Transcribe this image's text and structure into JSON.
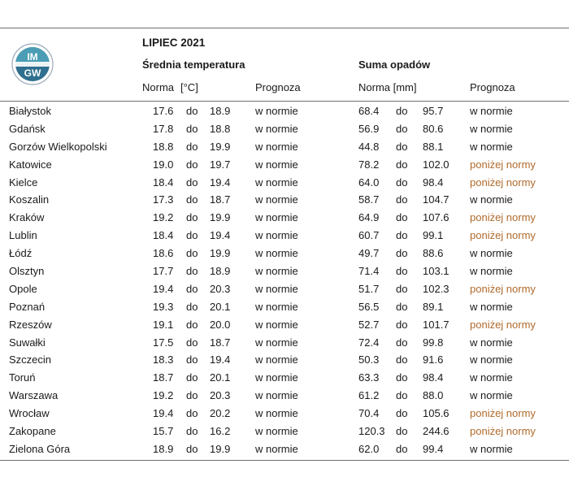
{
  "header": {
    "title": "LIPIEC 2021",
    "temp_section": "Średnia temperatura",
    "precip_section": "Suma opadów",
    "temp_norm_label": "Norma",
    "temp_unit": "[°C]",
    "temp_forecast_label": "Prognoza",
    "precip_norm_label": "Norma [mm]",
    "precip_forecast_label": "Prognoza"
  },
  "logo": {
    "text_top": "IM",
    "text_bottom": "GW"
  },
  "colors": {
    "normal": "#1a1a1a",
    "below_norm": "#b06a2b"
  },
  "rows": [
    {
      "city": "Białystok",
      "t_min": "17.6",
      "t_sep": "do",
      "t_max": "18.9",
      "t_forecast": "w normie",
      "p_min": "68.4",
      "p_sep": "do",
      "p_max": "95.7",
      "p_forecast": "w normie"
    },
    {
      "city": "Gdańsk",
      "t_min": "17.8",
      "t_sep": "do",
      "t_max": "18.8",
      "t_forecast": "w normie",
      "p_min": "56.9",
      "p_sep": "do",
      "p_max": "80.6",
      "p_forecast": "w normie"
    },
    {
      "city": "Gorzów Wielkopolski",
      "t_min": "18.8",
      "t_sep": "do",
      "t_max": "19.9",
      "t_forecast": "w normie",
      "p_min": "44.8",
      "p_sep": "do",
      "p_max": "88.1",
      "p_forecast": "w normie"
    },
    {
      "city": "Katowice",
      "t_min": "19.0",
      "t_sep": "do",
      "t_max": "19.7",
      "t_forecast": "w normie",
      "p_min": "78.2",
      "p_sep": "do",
      "p_max": "102.0",
      "p_forecast": "poniżej normy"
    },
    {
      "city": "Kielce",
      "t_min": "18.4",
      "t_sep": "do",
      "t_max": "19.4",
      "t_forecast": "w normie",
      "p_min": "64.0",
      "p_sep": "do",
      "p_max": "98.4",
      "p_forecast": "poniżej normy"
    },
    {
      "city": "Koszalin",
      "t_min": "17.3",
      "t_sep": "do",
      "t_max": "18.7",
      "t_forecast": "w normie",
      "p_min": "58.7",
      "p_sep": "do",
      "p_max": "104.7",
      "p_forecast": "w normie"
    },
    {
      "city": "Kraków",
      "t_min": "19.2",
      "t_sep": "do",
      "t_max": "19.9",
      "t_forecast": "w normie",
      "p_min": "64.9",
      "p_sep": "do",
      "p_max": "107.6",
      "p_forecast": "poniżej normy"
    },
    {
      "city": "Lublin",
      "t_min": "18.4",
      "t_sep": "do",
      "t_max": "19.4",
      "t_forecast": "w normie",
      "p_min": "60.7",
      "p_sep": "do",
      "p_max": "99.1",
      "p_forecast": "poniżej normy"
    },
    {
      "city": "Łódź",
      "t_min": "18.6",
      "t_sep": "do",
      "t_max": "19.9",
      "t_forecast": "w normie",
      "p_min": "49.7",
      "p_sep": "do",
      "p_max": "88.6",
      "p_forecast": "w normie"
    },
    {
      "city": "Olsztyn",
      "t_min": "17.7",
      "t_sep": "do",
      "t_max": "18.9",
      "t_forecast": "w normie",
      "p_min": "71.4",
      "p_sep": "do",
      "p_max": "103.1",
      "p_forecast": "w normie"
    },
    {
      "city": "Opole",
      "t_min": "19.4",
      "t_sep": "do",
      "t_max": "20.3",
      "t_forecast": "w normie",
      "p_min": "51.7",
      "p_sep": "do",
      "p_max": "102.3",
      "p_forecast": "poniżej normy"
    },
    {
      "city": "Poznań",
      "t_min": "19.3",
      "t_sep": "do",
      "t_max": "20.1",
      "t_forecast": "w normie",
      "p_min": "56.5",
      "p_sep": "do",
      "p_max": "89.1",
      "p_forecast": "w normie"
    },
    {
      "city": "Rzeszów",
      "t_min": "19.1",
      "t_sep": "do",
      "t_max": "20.0",
      "t_forecast": "w normie",
      "p_min": "52.7",
      "p_sep": "do",
      "p_max": "101.7",
      "p_forecast": "poniżej normy"
    },
    {
      "city": "Suwałki",
      "t_min": "17.5",
      "t_sep": "do",
      "t_max": "18.7",
      "t_forecast": "w normie",
      "p_min": "72.4",
      "p_sep": "do",
      "p_max": "99.8",
      "p_forecast": "w normie"
    },
    {
      "city": "Szczecin",
      "t_min": "18.3",
      "t_sep": "do",
      "t_max": "19.4",
      "t_forecast": "w normie",
      "p_min": "50.3",
      "p_sep": "do",
      "p_max": "91.6",
      "p_forecast": "w normie"
    },
    {
      "city": "Toruń",
      "t_min": "18.7",
      "t_sep": "do",
      "t_max": "20.1",
      "t_forecast": "w normie",
      "p_min": "63.3",
      "p_sep": "do",
      "p_max": "98.4",
      "p_forecast": "w normie"
    },
    {
      "city": "Warszawa",
      "t_min": "19.2",
      "t_sep": "do",
      "t_max": "20.3",
      "t_forecast": "w normie",
      "p_min": "61.2",
      "p_sep": "do",
      "p_max": "88.0",
      "p_forecast": "w normie"
    },
    {
      "city": "Wrocław",
      "t_min": "19.4",
      "t_sep": "do",
      "t_max": "20.2",
      "t_forecast": "w normie",
      "p_min": "70.4",
      "p_sep": "do",
      "p_max": "105.6",
      "p_forecast": "poniżej normy"
    },
    {
      "city": "Zakopane",
      "t_min": "15.7",
      "t_sep": "do",
      "t_max": "16.2",
      "t_forecast": "w normie",
      "p_min": "120.3",
      "p_sep": "do",
      "p_max": "244.6",
      "p_forecast": "poniżej normy"
    },
    {
      "city": "Zielona Góra",
      "t_min": "18.9",
      "t_sep": "do",
      "t_max": "19.9",
      "t_forecast": "w normie",
      "p_min": "62.0",
      "p_sep": "do",
      "p_max": "99.4",
      "p_forecast": "w normie"
    }
  ]
}
